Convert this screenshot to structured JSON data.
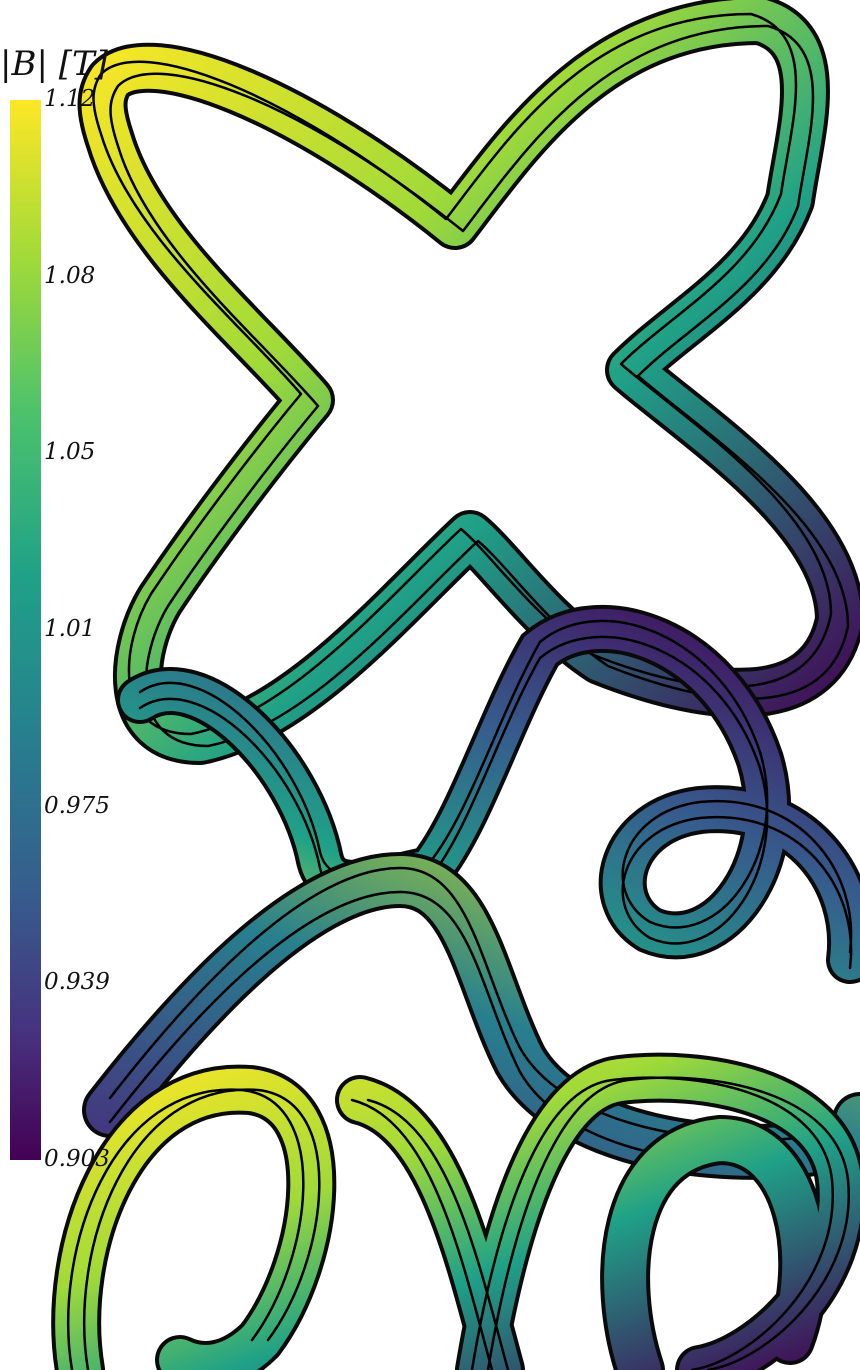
{
  "colorbar": {
    "title": "|B| [T]",
    "gradient": [
      "#fde725",
      "#a0da39",
      "#4ac16d",
      "#1fa187",
      "#277f8e",
      "#365c8d",
      "#46327e",
      "#440154"
    ],
    "ticks": [
      "1.12",
      "1.08",
      "1.05",
      "1.01",
      "0.975",
      "0.939",
      "0.903"
    ]
  },
  "scene": {
    "description_colors": {
      "outline": "#000000",
      "background": "#ffffff"
    }
  }
}
